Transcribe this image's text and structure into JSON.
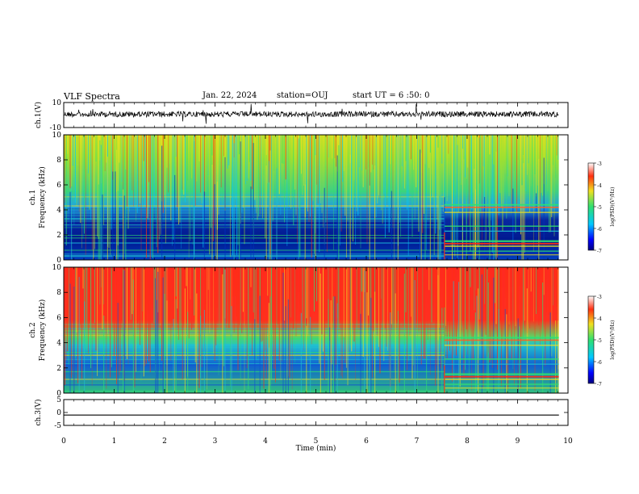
{
  "header": {
    "title": "VLF Spectra",
    "date": "Jan. 22, 2024",
    "station": "station=OUJ",
    "start_ut": "start UT = 6 :50: 0"
  },
  "chart_data": [
    {
      "type": "line",
      "panel": "ch1-waveform",
      "ylabel": "ch.1(V)",
      "ylim": [
        -10,
        10
      ],
      "y_ticks": [
        "10",
        "-10"
      ],
      "baseline": 0
    },
    {
      "type": "heatmap",
      "panel": "ch1-spectrogram",
      "ylabel_top": "ch.1",
      "ylabel": "Frequency (kHz)",
      "ylim": [
        0,
        10
      ],
      "y_ticks": [
        "0",
        "2",
        "4",
        "6",
        "8",
        "10"
      ],
      "colorbar": {
        "label": "log(PSD)(V²/Hz)",
        "range": [
          -7,
          -3
        ],
        "ticks": [
          "-3",
          "-4",
          "-5",
          "-6",
          "-7"
        ]
      },
      "regime_change_min": 7.55
    },
    {
      "type": "heatmap",
      "panel": "ch2-spectrogram",
      "ylabel_top": "ch.2",
      "ylabel": "Frequency (kHz)",
      "ylim": [
        0,
        10
      ],
      "y_ticks": [
        "0",
        "2",
        "4",
        "6",
        "8",
        "10"
      ],
      "colorbar": {
        "label": "log(PSD)(V²/Hz)",
        "range": [
          -7,
          -3
        ],
        "ticks": [
          "-3",
          "-4",
          "-5",
          "-6",
          "-7"
        ]
      },
      "regime_change_min": 7.55
    },
    {
      "type": "line",
      "panel": "ch3-waveform",
      "ylabel": "ch.3(V)",
      "ylim": [
        -5,
        5
      ],
      "y_ticks": [
        "5",
        "0",
        "-5"
      ],
      "baseline": -1
    }
  ],
  "x_axis": {
    "xlabel": "Time (min)",
    "xlim": [
      0,
      10
    ],
    "ticks": [
      "0",
      "1",
      "2",
      "3",
      "4",
      "5",
      "6",
      "7",
      "8",
      "9",
      "10"
    ],
    "data_end_min": 9.82
  },
  "colors": {
    "spectro_low": "#000080",
    "spectro_mid": "#00c8ff",
    "spectro_green": "#40e060",
    "spectro_yellow": "#f0e020",
    "spectro_high": "#ff2020"
  }
}
